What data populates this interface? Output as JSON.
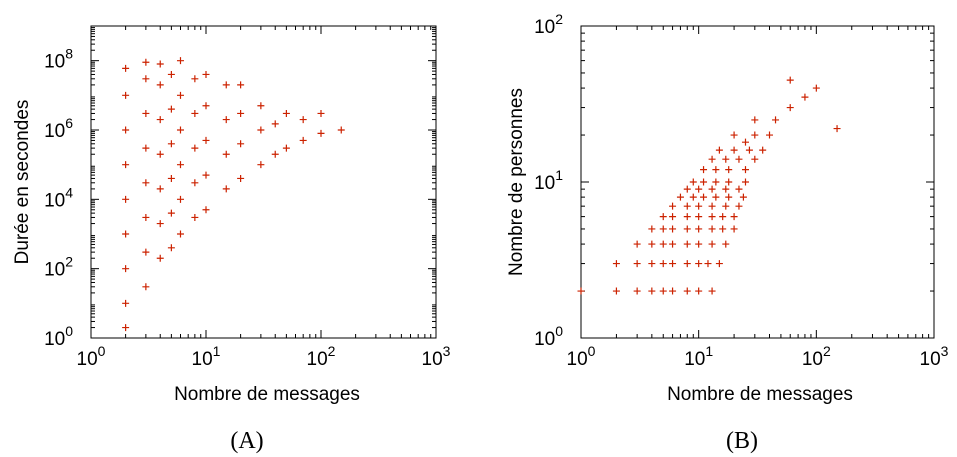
{
  "chart_data": [
    {
      "type": "scatter",
      "panel_label": "(A)",
      "xlabel": "Nombre de messages",
      "ylabel": "Durée en secondes",
      "x_scale": "log",
      "y_scale": "log",
      "xlim": [
        1,
        1000
      ],
      "ylim": [
        1,
        1000000000
      ],
      "x_ticks": [
        {
          "value": 1,
          "base": "10",
          "exp": "0"
        },
        {
          "value": 10,
          "base": "10",
          "exp": "1"
        },
        {
          "value": 100,
          "base": "10",
          "exp": "2"
        },
        {
          "value": 1000,
          "base": "10",
          "exp": "3"
        }
      ],
      "y_ticks": [
        {
          "value": 1,
          "base": "10",
          "exp": "0"
        },
        {
          "value": 100,
          "base": "10",
          "exp": "2"
        },
        {
          "value": 10000,
          "base": "10",
          "exp": "4"
        },
        {
          "value": 1000000,
          "base": "10",
          "exp": "6"
        },
        {
          "value": 100000000,
          "base": "10",
          "exp": "8"
        }
      ],
      "marker": "+",
      "color": "#cc2200",
      "grid": false,
      "points": [
        [
          2,
          2
        ],
        [
          2,
          10
        ],
        [
          2,
          100
        ],
        [
          2,
          1000
        ],
        [
          2,
          10000
        ],
        [
          2,
          100000
        ],
        [
          2,
          1000000
        ],
        [
          2,
          10000000
        ],
        [
          2,
          60000000
        ],
        [
          3,
          30
        ],
        [
          3,
          300
        ],
        [
          3,
          3000
        ],
        [
          3,
          30000
        ],
        [
          3,
          300000
        ],
        [
          3,
          3000000
        ],
        [
          3,
          30000000
        ],
        [
          3,
          90000000
        ],
        [
          4,
          200
        ],
        [
          4,
          2000
        ],
        [
          4,
          20000
        ],
        [
          4,
          200000
        ],
        [
          4,
          2000000
        ],
        [
          4,
          20000000
        ],
        [
          4,
          80000000
        ],
        [
          5,
          400
        ],
        [
          5,
          4000
        ],
        [
          5,
          40000
        ],
        [
          5,
          400000
        ],
        [
          5,
          4000000
        ],
        [
          5,
          40000000
        ],
        [
          6,
          1000
        ],
        [
          6,
          10000
        ],
        [
          6,
          100000
        ],
        [
          6,
          1000000
        ],
        [
          6,
          10000000
        ],
        [
          6,
          100000000
        ],
        [
          8,
          3000
        ],
        [
          8,
          30000
        ],
        [
          8,
          300000
        ],
        [
          8,
          3000000
        ],
        [
          8,
          30000000
        ],
        [
          10,
          5000
        ],
        [
          10,
          50000
        ],
        [
          10,
          500000
        ],
        [
          10,
          5000000
        ],
        [
          10,
          40000000
        ],
        [
          15,
          20000
        ],
        [
          15,
          200000
        ],
        [
          15,
          2000000
        ],
        [
          15,
          20000000
        ],
        [
          20,
          40000
        ],
        [
          20,
          400000
        ],
        [
          20,
          3000000
        ],
        [
          20,
          20000000
        ],
        [
          30,
          100000
        ],
        [
          30,
          1000000
        ],
        [
          30,
          5000000
        ],
        [
          40,
          200000
        ],
        [
          40,
          1500000
        ],
        [
          50,
          300000
        ],
        [
          50,
          3000000
        ],
        [
          70,
          500000
        ],
        [
          70,
          2000000
        ],
        [
          100,
          800000
        ],
        [
          100,
          3000000
        ],
        [
          150,
          1000000
        ]
      ]
    },
    {
      "type": "scatter",
      "panel_label": "(B)",
      "xlabel": "Nombre de messages",
      "ylabel": "Nombre de personnes",
      "x_scale": "log",
      "y_scale": "log",
      "xlim": [
        1,
        1000
      ],
      "ylim": [
        1,
        100
      ],
      "x_ticks": [
        {
          "value": 1,
          "base": "10",
          "exp": "0"
        },
        {
          "value": 10,
          "base": "10",
          "exp": "1"
        },
        {
          "value": 100,
          "base": "10",
          "exp": "2"
        },
        {
          "value": 1000,
          "base": "10",
          "exp": "3"
        }
      ],
      "y_ticks": [
        {
          "value": 1,
          "base": "10",
          "exp": "0"
        },
        {
          "value": 10,
          "base": "10",
          "exp": "1"
        },
        {
          "value": 100,
          "base": "10",
          "exp": "2"
        }
      ],
      "marker": "+",
      "color": "#cc2200",
      "grid": false,
      "points": [
        [
          1,
          2
        ],
        [
          2,
          2
        ],
        [
          3,
          2
        ],
        [
          4,
          2
        ],
        [
          5,
          2
        ],
        [
          6,
          2
        ],
        [
          8,
          2
        ],
        [
          10,
          2
        ],
        [
          13,
          2
        ],
        [
          2,
          3
        ],
        [
          3,
          3
        ],
        [
          4,
          3
        ],
        [
          5,
          3
        ],
        [
          6,
          3
        ],
        [
          8,
          3
        ],
        [
          10,
          3
        ],
        [
          12,
          3
        ],
        [
          15,
          3
        ],
        [
          3,
          4
        ],
        [
          4,
          4
        ],
        [
          5,
          4
        ],
        [
          6,
          4
        ],
        [
          8,
          4
        ],
        [
          10,
          4
        ],
        [
          13,
          4
        ],
        [
          17,
          4
        ],
        [
          4,
          5
        ],
        [
          5,
          5
        ],
        [
          6,
          5
        ],
        [
          8,
          5
        ],
        [
          10,
          5
        ],
        [
          13,
          5
        ],
        [
          16,
          5
        ],
        [
          20,
          5
        ],
        [
          5,
          6
        ],
        [
          6,
          6
        ],
        [
          8,
          6
        ],
        [
          10,
          6
        ],
        [
          13,
          6
        ],
        [
          16,
          6
        ],
        [
          20,
          6
        ],
        [
          6,
          7
        ],
        [
          8,
          7
        ],
        [
          10,
          7
        ],
        [
          13,
          7
        ],
        [
          17,
          7
        ],
        [
          22,
          7
        ],
        [
          7,
          8
        ],
        [
          9,
          8
        ],
        [
          11,
          8
        ],
        [
          14,
          8
        ],
        [
          18,
          8
        ],
        [
          24,
          8
        ],
        [
          8,
          9
        ],
        [
          10,
          9
        ],
        [
          13,
          9
        ],
        [
          17,
          9
        ],
        [
          22,
          9
        ],
        [
          9,
          10
        ],
        [
          11,
          10
        ],
        [
          14,
          10
        ],
        [
          18,
          10
        ],
        [
          25,
          10
        ],
        [
          11,
          12
        ],
        [
          14,
          12
        ],
        [
          18,
          12
        ],
        [
          25,
          12
        ],
        [
          13,
          14
        ],
        [
          17,
          14
        ],
        [
          22,
          14
        ],
        [
          30,
          14
        ],
        [
          15,
          16
        ],
        [
          20,
          16
        ],
        [
          27,
          16
        ],
        [
          35,
          16
        ],
        [
          20,
          20
        ],
        [
          25,
          18
        ],
        [
          30,
          20
        ],
        [
          40,
          20
        ],
        [
          30,
          25
        ],
        [
          45,
          25
        ],
        [
          60,
          30
        ],
        [
          80,
          35
        ],
        [
          100,
          40
        ],
        [
          150,
          22
        ],
        [
          60,
          45
        ]
      ]
    }
  ]
}
